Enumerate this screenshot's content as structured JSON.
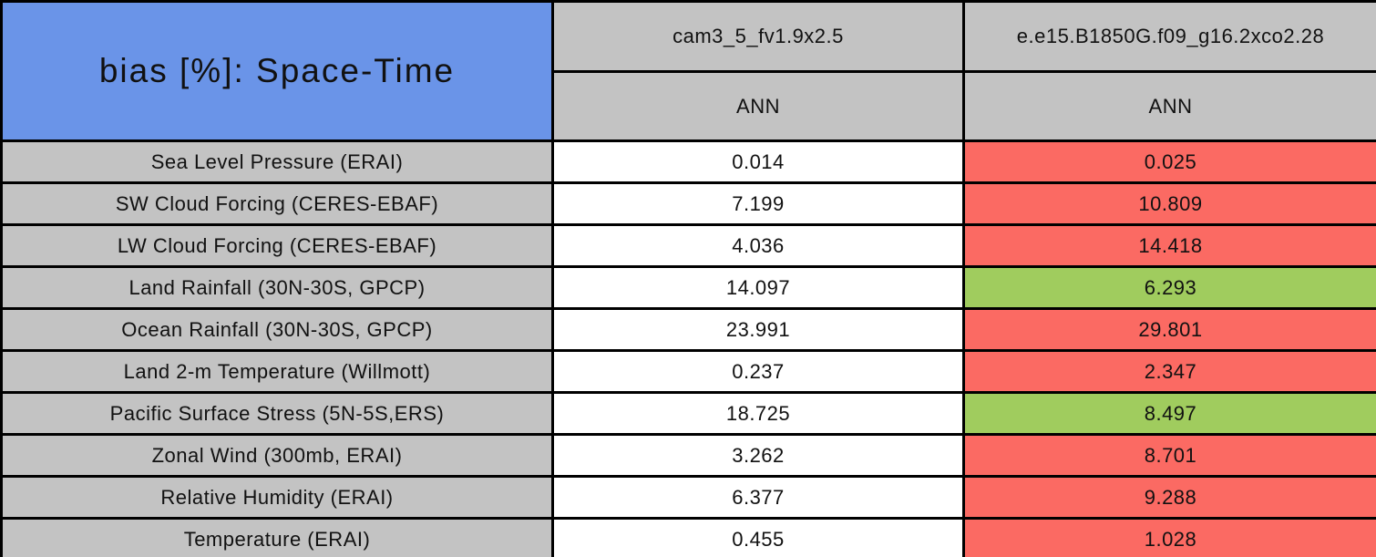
{
  "colors": {
    "title_bg": "#6a94e8",
    "header_bg": "#c3c3c3",
    "label_bg": "#c3c3c3",
    "control_value_bg": "#ffffff",
    "worse": "#fb6a63",
    "better": "#a0cc5e",
    "border": "#000000",
    "text": "#111111"
  },
  "chart_data": {
    "type": "table",
    "title": "bias [%]: Space-Time",
    "columns": [
      "cam3_5_fv1.9x2.5",
      "e.e15.B1850G.f09_g16.2xco2.28"
    ],
    "season_headers": [
      "ANN",
      "ANN"
    ],
    "status_colors": {
      "worse": "#fb6a63",
      "better": "#a0cc5e"
    },
    "rows": [
      {
        "label": "Sea Level Pressure (ERAI)",
        "values": [
          "0.014",
          "0.025"
        ],
        "status": "worse"
      },
      {
        "label": "SW Cloud Forcing (CERES-EBAF)",
        "values": [
          "7.199",
          "10.809"
        ],
        "status": "worse"
      },
      {
        "label": "LW Cloud Forcing (CERES-EBAF)",
        "values": [
          "4.036",
          "14.418"
        ],
        "status": "worse"
      },
      {
        "label": "Land Rainfall (30N-30S, GPCP)",
        "values": [
          "14.097",
          "6.293"
        ],
        "status": "better"
      },
      {
        "label": "Ocean Rainfall (30N-30S, GPCP)",
        "values": [
          "23.991",
          "29.801"
        ],
        "status": "worse"
      },
      {
        "label": "Land 2-m Temperature (Willmott)",
        "values": [
          "0.237",
          "2.347"
        ],
        "status": "worse"
      },
      {
        "label": "Pacific Surface Stress (5N-5S,ERS)",
        "values": [
          "18.725",
          "8.497"
        ],
        "status": "better"
      },
      {
        "label": "Zonal Wind (300mb, ERAI)",
        "values": [
          "3.262",
          "8.701"
        ],
        "status": "worse"
      },
      {
        "label": "Relative Humidity (ERAI)",
        "values": [
          "6.377",
          "9.288"
        ],
        "status": "worse"
      },
      {
        "label": "Temperature (ERAI)",
        "values": [
          "0.455",
          "1.028"
        ],
        "status": "worse"
      }
    ]
  }
}
